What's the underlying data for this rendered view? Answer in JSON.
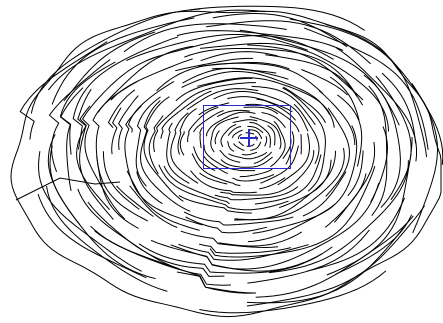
{
  "image": {
    "subject": "tree-ring-contour-trace",
    "line_color": "#000000",
    "background_color": "#ffffff"
  },
  "overlay": {
    "selection_box_color": "#2a2acc",
    "center_marker_icon": "crosshair-icon",
    "center_marker_color": "#2a2acc"
  }
}
